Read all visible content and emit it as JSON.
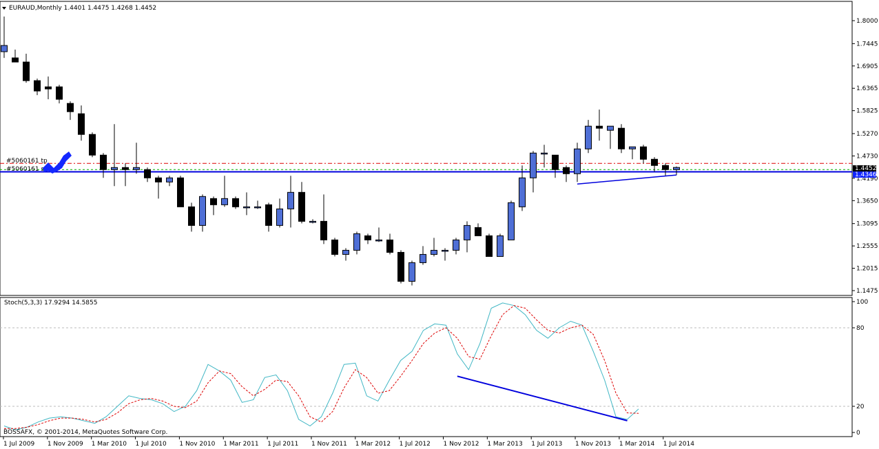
{
  "main_panel": {
    "symbol_header": "EURAUD,Monthly  1.4401 1.4475 1.4268 1.4452",
    "price_ticks": [
      "1.8000",
      "1.7445",
      "1.6905",
      "1.6365",
      "1.5825",
      "1.5270",
      "1.4730",
      "1.4190",
      "1.3650",
      "1.3095",
      "1.2555",
      "1.2015",
      "1.1475"
    ],
    "bid_label": "1.4452",
    "line_label": "1.4346",
    "order_tp_label": "#5060161 tp",
    "order_sl_label": "#5060161 sl",
    "colors": {
      "bull_candle": "#4f6fd6",
      "bear_candle": "#000000",
      "horizontal_line": "#0000dd",
      "tp_line": "#dd0000",
      "sl_line": "#00aa00",
      "trend_line": "#0000dd",
      "arrow": "#1428ff"
    }
  },
  "sub_panel": {
    "indicator_header": "Stoch(5,3,3) 17.9294 14.5855",
    "level_ticks": [
      "100",
      "80",
      "20",
      "0"
    ],
    "colors": {
      "main_line": "#3fb6c4",
      "signal_line": "#dd0000",
      "divergence_line": "#0000dd"
    }
  },
  "time_axis": {
    "labels": [
      "1 Jul 2009",
      "1 Nov 2009",
      "1 Mar 2010",
      "1 Jul 2010",
      "1 Nov 2010",
      "1 Mar 2011",
      "1 Jul 2011",
      "1 Nov 2011",
      "1 Mar 2012",
      "1 Jul 2012",
      "1 Nov 2012",
      "1 Mar 2013",
      "1 Jul 2013",
      "1 Nov 2013",
      "1 Mar 2014",
      "1 Jul 2014"
    ]
  },
  "copyright": "BOSSAFX, © 2001-2014, MetaQuotes Software Corp.",
  "chart_data": {
    "type": "candlestick",
    "timeframe": "Monthly",
    "symbol": "EURAUD",
    "ylim": [
      1.1475,
      1.8
    ],
    "candles": [
      {
        "o": 1.725,
        "h": 1.81,
        "l": 1.71,
        "c": 1.74
      },
      {
        "o": 1.71,
        "h": 1.73,
        "l": 1.7,
        "c": 1.7
      },
      {
        "o": 1.7,
        "h": 1.72,
        "l": 1.65,
        "c": 1.655
      },
      {
        "o": 1.655,
        "h": 1.66,
        "l": 1.62,
        "c": 1.63
      },
      {
        "o": 1.64,
        "h": 1.665,
        "l": 1.61,
        "c": 1.635
      },
      {
        "o": 1.64,
        "h": 1.645,
        "l": 1.6,
        "c": 1.61
      },
      {
        "o": 1.6,
        "h": 1.605,
        "l": 1.56,
        "c": 1.58
      },
      {
        "o": 1.575,
        "h": 1.595,
        "l": 1.51,
        "c": 1.525
      },
      {
        "o": 1.525,
        "h": 1.53,
        "l": 1.47,
        "c": 1.475
      },
      {
        "o": 1.475,
        "h": 1.48,
        "l": 1.42,
        "c": 1.44
      },
      {
        "o": 1.44,
        "h": 1.55,
        "l": 1.4,
        "c": 1.445
      },
      {
        "o": 1.445,
        "h": 1.455,
        "l": 1.4,
        "c": 1.44
      },
      {
        "o": 1.44,
        "h": 1.505,
        "l": 1.43,
        "c": 1.445
      },
      {
        "o": 1.44,
        "h": 1.445,
        "l": 1.41,
        "c": 1.42
      },
      {
        "o": 1.42,
        "h": 1.425,
        "l": 1.37,
        "c": 1.41
      },
      {
        "o": 1.41,
        "h": 1.425,
        "l": 1.4,
        "c": 1.42
      },
      {
        "o": 1.42,
        "h": 1.425,
        "l": 1.35,
        "c": 1.35
      },
      {
        "o": 1.35,
        "h": 1.36,
        "l": 1.29,
        "c": 1.305
      },
      {
        "o": 1.305,
        "h": 1.38,
        "l": 1.29,
        "c": 1.375
      },
      {
        "o": 1.37,
        "h": 1.375,
        "l": 1.33,
        "c": 1.355
      },
      {
        "o": 1.355,
        "h": 1.425,
        "l": 1.35,
        "c": 1.37
      },
      {
        "o": 1.37,
        "h": 1.375,
        "l": 1.345,
        "c": 1.35
      },
      {
        "o": 1.35,
        "h": 1.385,
        "l": 1.33,
        "c": 1.35
      },
      {
        "o": 1.35,
        "h": 1.365,
        "l": 1.345,
        "c": 1.35
      },
      {
        "o": 1.355,
        "h": 1.36,
        "l": 1.29,
        "c": 1.305
      },
      {
        "o": 1.305,
        "h": 1.37,
        "l": 1.3,
        "c": 1.345
      },
      {
        "o": 1.345,
        "h": 1.425,
        "l": 1.3,
        "c": 1.385
      },
      {
        "o": 1.385,
        "h": 1.41,
        "l": 1.31,
        "c": 1.315
      },
      {
        "o": 1.315,
        "h": 1.32,
        "l": 1.31,
        "c": 1.315
      },
      {
        "o": 1.315,
        "h": 1.38,
        "l": 1.26,
        "c": 1.27
      },
      {
        "o": 1.27,
        "h": 1.275,
        "l": 1.23,
        "c": 1.235
      },
      {
        "o": 1.235,
        "h": 1.25,
        "l": 1.22,
        "c": 1.245
      },
      {
        "o": 1.245,
        "h": 1.29,
        "l": 1.235,
        "c": 1.285
      },
      {
        "o": 1.28,
        "h": 1.285,
        "l": 1.26,
        "c": 1.27
      },
      {
        "o": 1.27,
        "h": 1.3,
        "l": 1.265,
        "c": 1.27
      },
      {
        "o": 1.27,
        "h": 1.285,
        "l": 1.235,
        "c": 1.24
      },
      {
        "o": 1.24,
        "h": 1.245,
        "l": 1.165,
        "c": 1.17
      },
      {
        "o": 1.17,
        "h": 1.22,
        "l": 1.16,
        "c": 1.215
      },
      {
        "o": 1.215,
        "h": 1.255,
        "l": 1.21,
        "c": 1.235
      },
      {
        "o": 1.235,
        "h": 1.275,
        "l": 1.23,
        "c": 1.245
      },
      {
        "o": 1.245,
        "h": 1.25,
        "l": 1.22,
        "c": 1.245
      },
      {
        "o": 1.245,
        "h": 1.275,
        "l": 1.235,
        "c": 1.27
      },
      {
        "o": 1.27,
        "h": 1.315,
        "l": 1.24,
        "c": 1.305
      },
      {
        "o": 1.3,
        "h": 1.31,
        "l": 1.28,
        "c": 1.28
      },
      {
        "o": 1.28,
        "h": 1.285,
        "l": 1.23,
        "c": 1.23
      },
      {
        "o": 1.23,
        "h": 1.285,
        "l": 1.23,
        "c": 1.28
      },
      {
        "o": 1.27,
        "h": 1.365,
        "l": 1.27,
        "c": 1.36
      },
      {
        "o": 1.35,
        "h": 1.45,
        "l": 1.34,
        "c": 1.42
      },
      {
        "o": 1.42,
        "h": 1.485,
        "l": 1.385,
        "c": 1.48
      },
      {
        "o": 1.48,
        "h": 1.5,
        "l": 1.445,
        "c": 1.48
      },
      {
        "o": 1.475,
        "h": 1.475,
        "l": 1.42,
        "c": 1.44
      },
      {
        "o": 1.445,
        "h": 1.45,
        "l": 1.41,
        "c": 1.43
      },
      {
        "o": 1.43,
        "h": 1.505,
        "l": 1.41,
        "c": 1.49
      },
      {
        "o": 1.49,
        "h": 1.56,
        "l": 1.48,
        "c": 1.545
      },
      {
        "o": 1.545,
        "h": 1.585,
        "l": 1.51,
        "c": 1.54
      },
      {
        "o": 1.535,
        "h": 1.545,
        "l": 1.49,
        "c": 1.545
      },
      {
        "o": 1.54,
        "h": 1.55,
        "l": 1.48,
        "c": 1.49
      },
      {
        "o": 1.49,
        "h": 1.495,
        "l": 1.465,
        "c": 1.495
      },
      {
        "o": 1.495,
        "h": 1.5,
        "l": 1.455,
        "c": 1.465
      },
      {
        "o": 1.465,
        "h": 1.47,
        "l": 1.435,
        "c": 1.45
      },
      {
        "o": 1.45,
        "h": 1.455,
        "l": 1.425,
        "c": 1.44
      },
      {
        "o": 1.44,
        "h": 1.4475,
        "l": 1.4268,
        "c": 1.4452
      }
    ],
    "horizontal_lines": [
      {
        "price": 1.4346,
        "color": "#0000dd"
      },
      {
        "price": 1.455,
        "color": "#dd0000",
        "label": "tp"
      },
      {
        "price": 1.44,
        "color": "#00aa00",
        "label": "sl"
      }
    ],
    "trend_line": {
      "from": {
        "index": 52,
        "price": 1.405
      },
      "to": {
        "index": 61,
        "price": 1.427
      }
    },
    "stochastic": {
      "main": [
        5,
        2,
        4,
        8,
        11,
        12,
        11,
        9,
        7,
        12,
        20,
        28,
        26,
        25,
        22,
        16,
        20,
        32,
        52,
        47,
        40,
        23,
        25,
        42,
        44,
        32,
        10,
        5,
        12,
        30,
        52,
        53,
        28,
        24,
        40,
        55,
        62,
        78,
        83,
        82,
        60,
        48,
        68,
        95,
        99,
        97,
        90,
        78,
        72,
        80,
        85,
        82,
        62,
        40,
        12,
        10,
        17.9294
      ],
      "signal": [
        3,
        3,
        4,
        6,
        9,
        11,
        11,
        10,
        8,
        10,
        15,
        22,
        25,
        26,
        24,
        20,
        19,
        24,
        38,
        47,
        45,
        35,
        28,
        33,
        40,
        39,
        28,
        12,
        8,
        16,
        34,
        48,
        42,
        30,
        32,
        43,
        55,
        68,
        76,
        80,
        72,
        58,
        56,
        74,
        90,
        97,
        95,
        86,
        78,
        76,
        80,
        82,
        75,
        55,
        30,
        15,
        14.5855
      ],
      "levels": [
        80,
        20
      ],
      "ylim": [
        0,
        100
      ],
      "divergence_line": {
        "from": {
          "index": 40,
          "value": 43
        },
        "to": {
          "index": 55,
          "value": 9
        }
      }
    }
  }
}
